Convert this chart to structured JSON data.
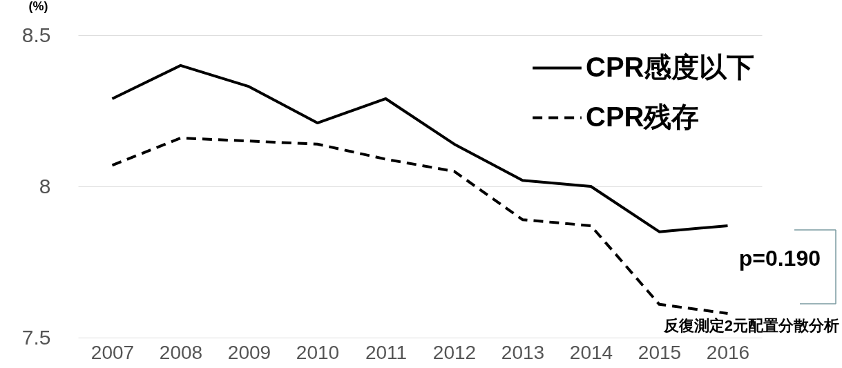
{
  "chart_data": {
    "type": "line",
    "ylabel": "(%)",
    "categories": [
      "2007",
      "2008",
      "2009",
      "2010",
      "2011",
      "2012",
      "2013",
      "2014",
      "2015",
      "2016"
    ],
    "series": [
      {
        "name": "CPR感度以下",
        "color": "#000000",
        "line_style": "solid",
        "values": [
          8.29,
          8.4,
          8.33,
          8.21,
          8.29,
          8.14,
          8.02,
          8.0,
          7.85,
          7.87
        ]
      },
      {
        "name": "CPR残存",
        "color": "#000000",
        "line_style": "dashed",
        "values": [
          8.07,
          8.16,
          8.15,
          8.14,
          8.09,
          8.05,
          7.89,
          7.87,
          7.61,
          7.58
        ]
      }
    ],
    "ylim": [
      7.5,
      8.5
    ],
    "yticks": [
      7.5,
      8,
      8.5
    ],
    "grid": "y",
    "legend": "top right",
    "marker": "none",
    "annotations": [
      "p=0.190",
      "反復測定2元配置分散分析"
    ]
  }
}
